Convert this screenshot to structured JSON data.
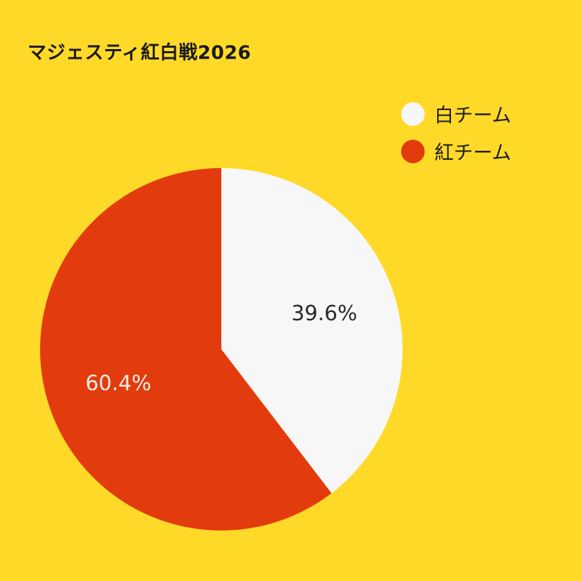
{
  "colors": {
    "background": "#FFD928",
    "title_text": "#1a1a1a",
    "legend_text": "#1f1f1f"
  },
  "chart_data": {
    "type": "pie",
    "title": "マジェスティ紅白戦2026",
    "legend_position": "top-right",
    "start_angle_deg": 0,
    "direction": "clockwise",
    "slices": [
      {
        "name": "白チーム",
        "value": 39.6,
        "label": "39.6%",
        "color": "#F7F7F7",
        "label_color": "#2a2a2a"
      },
      {
        "name": "紅チーム",
        "value": 60.4,
        "label": "60.4%",
        "color": "#E23C0E",
        "label_color": "#F4EDE6"
      }
    ]
  }
}
